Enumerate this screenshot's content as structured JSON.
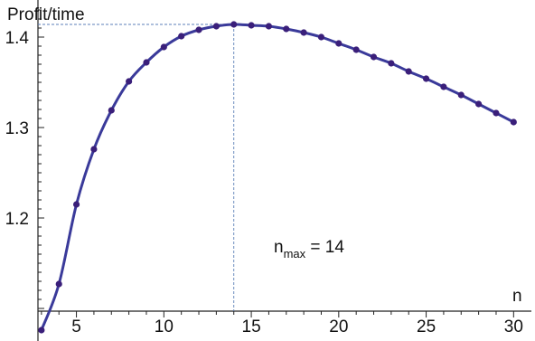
{
  "chart_data": {
    "type": "line",
    "ylabel": "Profit/time",
    "xlabel": "n",
    "xlim": [
      2.8,
      30.5
    ],
    "ylim": [
      1.097,
      1.436
    ],
    "x_ticks": [
      5,
      10,
      15,
      20,
      25,
      30
    ],
    "y_ticks": [
      1.2,
      1.3,
      1.4
    ],
    "x_tick_labels": [
      "5",
      "10",
      "15",
      "20",
      "25",
      "30"
    ],
    "y_tick_labels": [
      "1.2",
      "1.3",
      "1.4"
    ],
    "annotation": {
      "main": "n",
      "sub": "max",
      "rest": " = 14",
      "x": 14,
      "y": 1.414
    },
    "grid": false,
    "series": [
      {
        "color": "#3a3a9a",
        "marker_color": "#3a1f7a",
        "x": [
          3,
          4,
          5,
          6,
          7,
          8,
          9,
          10,
          11,
          12,
          13,
          14,
          15,
          16,
          17,
          18,
          19,
          20,
          21,
          22,
          23,
          24,
          25,
          26,
          27,
          28,
          29,
          30
        ],
        "y": [
          1.076,
          1.127,
          1.215,
          1.276,
          1.319,
          1.351,
          1.372,
          1.389,
          1.401,
          1.408,
          1.412,
          1.414,
          1.413,
          1.412,
          1.409,
          1.405,
          1.4,
          1.393,
          1.386,
          1.378,
          1.371,
          1.362,
          1.354,
          1.345,
          1.336,
          1.326,
          1.316,
          1.306
        ]
      }
    ]
  }
}
